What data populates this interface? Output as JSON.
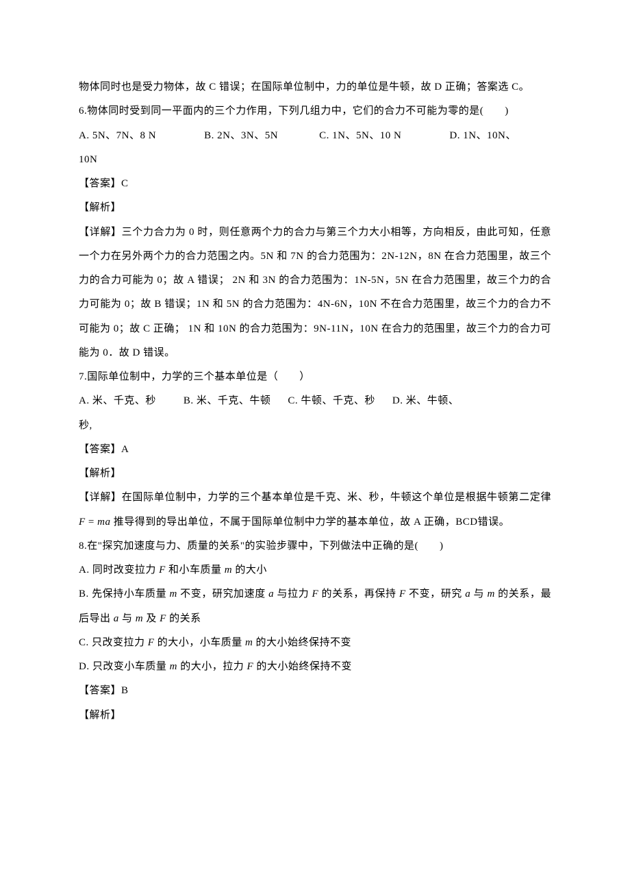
{
  "page": {
    "background_color": "#ffffff",
    "text_color": "#000000",
    "font_size": 15,
    "line_height": 2.35,
    "font_family": "SimSun"
  },
  "frag0": "物体同时也是受力物体，故 C 错误；在国际单位制中，力的单位是牛顿，故 D 正确；答案选 C。",
  "q6": {
    "stem": "6.物体同时受到同一平面内的三个力作用，下列几组力中，它们的合力不可能为零的是(　　)",
    "optA": "A. 5N、7N、8 N",
    "optB": "B. 2N、3N、5N",
    "optC": "C. 1N、5N、10 N",
    "optD_part1": "D. 1N、10N、",
    "optD_part2": "10N",
    "answer": "【答案】C",
    "jiexi": "【解析】",
    "detail": "【详解】三个力合力为 0 时，则任意两个力的合力与第三个力大小相等，方向相反，由此可知，任意一个力在另外两个力的合力范围之内。5N 和 7N 的合力范围为：2N-12N，8N 在合力范围里，故三个力的合力可能为 0；故 A 错误； 2N 和 3N 的合力范围为：1N-5N，5N 在合力范围里，故三个力的合力可能为 0；故 B 错误；1N 和 5N 的合力范围为：4N-6N，10N 不在合力范围里，故三个力的合力不可能为 0；故 C 正确； 1N 和 10N 的合力范围为：9N-11N，10N 在合力的范围里，故三个力的合力可能为 0．故 D 错误。"
  },
  "q7": {
    "stem": "7.国际单位制中，力学的三个基本单位是（　　）",
    "optA": "A. 米、千克、秒",
    "optB": "B. 米、千克、牛顿",
    "optC": "C. 牛顿、千克、秒",
    "optD_part1": "D. 米、牛顿、",
    "optD_part2": "秒,",
    "answer": "【答案】A",
    "jiexi": "【解析】",
    "detail_before": "【详解】在国际单位制中，力学的三个基本单位是千克、米、秒，牛顿这个单位是根据牛顿第二定律 ",
    "formula_F": "F",
    "formula_eq": " = ",
    "formula_ma": "ma",
    "detail_after": " 推导得到的导出单位，不属于国际单位制中力学的基本单位，故 A 正确，BCD错误。"
  },
  "q8": {
    "stem": "8.在\"探究加速度与力、质量的关系\"的实验步骤中，下列做法中正确的是(　　)",
    "optA_pre": "A. 同时改变拉力 ",
    "optA_F": "F",
    "optA_mid": " 和小车质量 ",
    "optA_m": "m",
    "optA_post": " 的大小",
    "optB_pre": "B. 先保持小车质量 ",
    "optB_m1": "m",
    "optB_t1": " 不变，研究加速度 ",
    "optB_a1": "a",
    "optB_t2": " 与拉力 ",
    "optB_F1": "F",
    "optB_t3": " 的关系，再保持 ",
    "optB_F2": "F",
    "optB_t4": " 不变，研究 ",
    "optB_a2": "a",
    "optB_t5": " 与 ",
    "optB_m2": "m",
    "optB_t6": " 的关系，最后导出 ",
    "optB_a3": "a",
    "optB_t7": " 与 ",
    "optB_m3": "m",
    "optB_t8": " 及 ",
    "optB_F3": "F",
    "optB_t9": " 的关系",
    "optC_pre": "C. 只改变拉力 ",
    "optC_F": "F",
    "optC_mid": " 的大小，小车质量 ",
    "optC_m": "m",
    "optC_post": " 的大小始终保持不变",
    "optD_pre": "D. 只改变小车质量 ",
    "optD_m": "m",
    "optD_mid": " 的大小，拉力 ",
    "optD_F": "F",
    "optD_post": " 的大小始终保持不变",
    "answer": "【答案】B",
    "jiexi": "【解析】"
  },
  "gaps": {
    "g1": 70,
    "g2": 60,
    "g3": 70,
    "g4": 55,
    "g5": 40,
    "g6": 25,
    "g7": 25,
    "g8": 30
  }
}
